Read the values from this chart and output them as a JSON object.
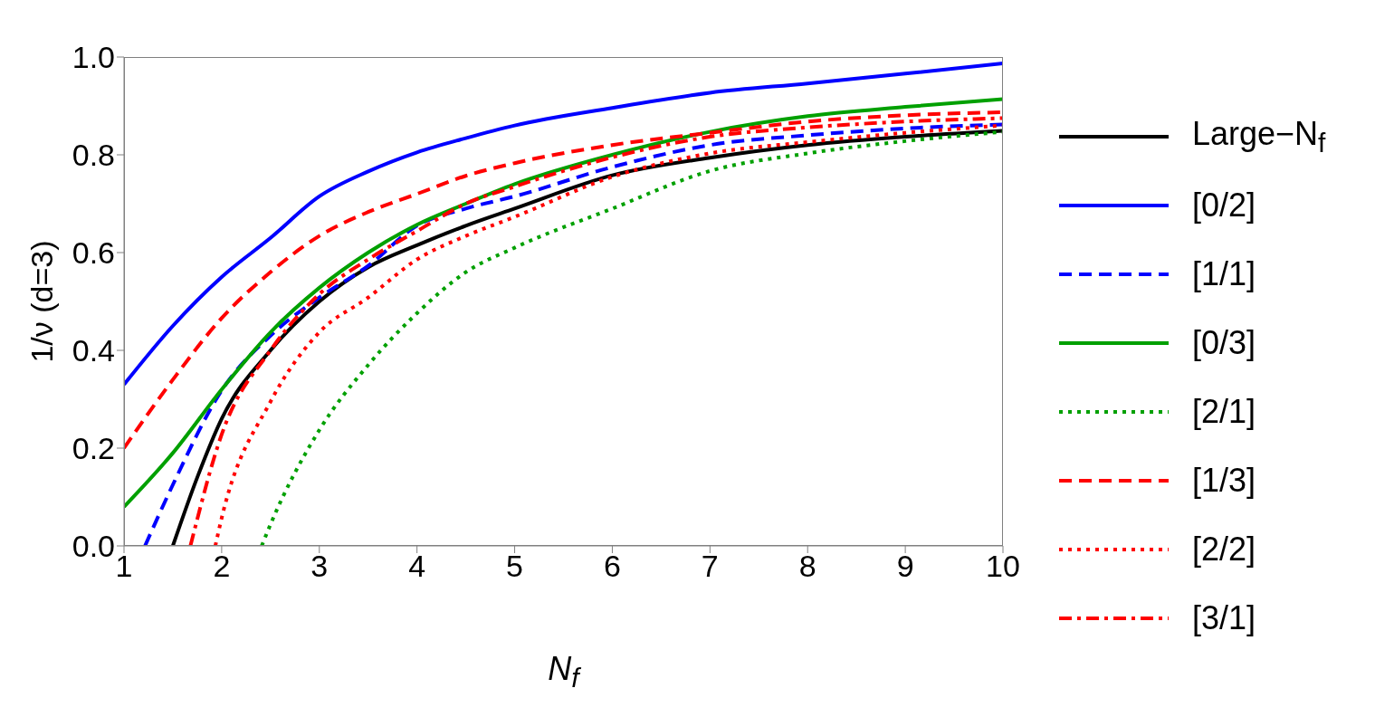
{
  "chart_data": {
    "type": "line",
    "xlabel": "N$_{f}$",
    "ylabel": "1/ν (d=3)",
    "xlim": [
      1,
      10
    ],
    "ylim": [
      0,
      1
    ],
    "xticks": [
      1,
      2,
      3,
      4,
      5,
      6,
      7,
      8,
      9,
      10
    ],
    "yticks": [
      {
        "value": 0,
        "label": "0.0"
      },
      {
        "value": 0.2,
        "label": "0.2"
      },
      {
        "value": 0.4,
        "label": "0.4"
      },
      {
        "value": 0.6,
        "label": "0.6"
      },
      {
        "value": 0.8,
        "label": "0.8"
      },
      {
        "value": 1,
        "label": "1.0"
      }
    ],
    "grid": false,
    "legend": "right",
    "marker": "none",
    "series": [
      {
        "name": "Large−N$_{f}$",
        "color": "#000000",
        "line_style": "solid",
        "x": [
          1.5,
          1.75,
          2,
          2.5,
          3,
          3.5,
          4,
          4.5,
          5,
          6,
          7,
          8,
          9,
          10
        ],
        "values": [
          0,
          0.14,
          0.26,
          0.4,
          0.5,
          0.57,
          0.615,
          0.655,
          0.69,
          0.758,
          0.794,
          0.82,
          0.837,
          0.849
        ]
      },
      {
        "name": "[0/2]",
        "color": "#0000ff",
        "line_style": "solid",
        "x": [
          1,
          1.5,
          2,
          2.5,
          3,
          3.5,
          4,
          4.5,
          5,
          6,
          7,
          8,
          9,
          10
        ],
        "values": [
          0.33,
          0.45,
          0.55,
          0.63,
          0.715,
          0.766,
          0.805,
          0.834,
          0.86,
          0.896,
          0.927,
          0.946,
          0.966,
          0.987
        ]
      },
      {
        "name": "[1/1]",
        "color": "#0000ff",
        "line_style": "dashed",
        "x": [
          1.215,
          1.5,
          2,
          2.5,
          3,
          3.5,
          4,
          4.5,
          5,
          6,
          7,
          8,
          9,
          10
        ],
        "values": [
          0,
          0.125,
          0.318,
          0.43,
          0.508,
          0.573,
          0.655,
          0.69,
          0.715,
          0.775,
          0.82,
          0.84,
          0.854,
          0.862
        ]
      },
      {
        "name": "[0/3]",
        "color": "#00a000",
        "line_style": "solid",
        "x": [
          1,
          1.5,
          2,
          2.5,
          3,
          3.5,
          4,
          4.5,
          5,
          6,
          7,
          8,
          9,
          10
        ],
        "values": [
          0.08,
          0.19,
          0.32,
          0.437,
          0.528,
          0.6,
          0.657,
          0.7,
          0.74,
          0.8,
          0.847,
          0.879,
          0.898,
          0.914
        ]
      },
      {
        "name": "[2/1]",
        "color": "#00a000",
        "line_style": "dotted",
        "x": [
          2.41,
          2.5,
          3,
          3.5,
          4,
          4.5,
          5,
          6,
          7,
          8,
          9,
          10
        ],
        "values": [
          0,
          0.044,
          0.237,
          0.37,
          0.476,
          0.56,
          0.61,
          0.69,
          0.767,
          0.803,
          0.828,
          0.847
        ]
      },
      {
        "name": "[1/3]",
        "color": "#ff0000",
        "line_style": "dashed",
        "x": [
          1,
          1.5,
          2,
          2.5,
          3,
          3.5,
          4,
          4.5,
          5,
          6,
          7,
          8,
          9,
          10
        ],
        "values": [
          0.2,
          0.34,
          0.466,
          0.56,
          0.634,
          0.683,
          0.72,
          0.757,
          0.783,
          0.82,
          0.845,
          0.868,
          0.881,
          0.887
        ]
      },
      {
        "name": "[2/2]",
        "color": "#ff0000",
        "line_style": "dotted",
        "x": [
          1.935,
          2,
          2.5,
          3,
          3.5,
          4,
          4.5,
          5,
          6,
          7,
          8,
          9,
          10
        ],
        "values": [
          0,
          0.057,
          0.295,
          0.437,
          0.508,
          0.586,
          0.634,
          0.673,
          0.755,
          0.803,
          0.826,
          0.845,
          0.86
        ]
      },
      {
        "name": "[3/1]",
        "color": "#ff0000",
        "line_style": "dashdot",
        "x": [
          1.68,
          2,
          2.5,
          3,
          3.5,
          4,
          4.5,
          5,
          6,
          7,
          8,
          9,
          10
        ],
        "values": [
          0,
          0.228,
          0.4,
          0.515,
          0.586,
          0.644,
          0.7,
          0.735,
          0.795,
          0.837,
          0.856,
          0.868,
          0.875
        ]
      }
    ]
  }
}
